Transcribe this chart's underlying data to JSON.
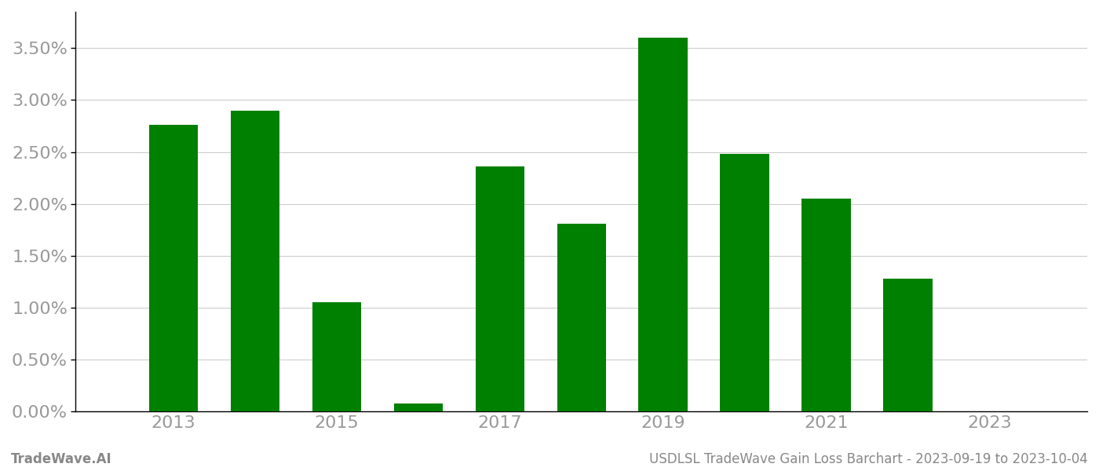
{
  "years": [
    2013,
    2014,
    2015,
    2016,
    2017,
    2018,
    2019,
    2020,
    2021,
    2022,
    2023
  ],
  "values": [
    0.0276,
    0.029,
    0.0105,
    0.0008,
    0.0236,
    0.0181,
    0.036,
    0.0248,
    0.0205,
    0.0128,
    0.0
  ],
  "bar_color": "#008000",
  "background_color": "#ffffff",
  "ylim": [
    0,
    0.0385
  ],
  "yticks": [
    0.0,
    0.005,
    0.01,
    0.015,
    0.02,
    0.025,
    0.03,
    0.035
  ],
  "ytick_labels": [
    "0.00%",
    "0.50%",
    "1.00%",
    "1.50%",
    "2.00%",
    "2.50%",
    "3.00%",
    "3.50%"
  ],
  "xticks": [
    2013,
    2015,
    2017,
    2019,
    2021,
    2023
  ],
  "grid_color": "#cccccc",
  "footer_left": "TradeWave.AI",
  "footer_right": "USDLSL TradeWave Gain Loss Barchart - 2023-09-19 to 2023-10-04",
  "footer_color": "#888888",
  "footer_fontsize": 12,
  "tick_fontsize": 16,
  "bar_width": 0.6,
  "xlim_left": 2011.8,
  "xlim_right": 2024.2
}
